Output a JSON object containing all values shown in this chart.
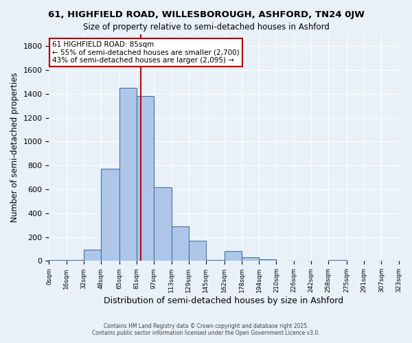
{
  "title_line1": "61, HIGHFIELD ROAD, WILLESBOROUGH, ASHFORD, TN24 0JW",
  "title_line2": "Size of property relative to semi-detached houses in Ashford",
  "xlabel": "Distribution of semi-detached houses by size in Ashford",
  "ylabel": "Number of semi-detached properties",
  "footer_line1": "Contains HM Land Registry data © Crown copyright and database right 2025.",
  "footer_line2": "Contains public sector information licensed under the Open Government Licence v3.0.",
  "annotation_title": "61 HIGHFIELD ROAD: 85sqm",
  "annotation_line1": "← 55% of semi-detached houses are smaller (2,700)",
  "annotation_line2": "43% of semi-detached houses are larger (2,095) →",
  "bar_edges": [
    0,
    16,
    32,
    48,
    65,
    81,
    97,
    113,
    129,
    145,
    162,
    178,
    194,
    210,
    226,
    242,
    258,
    275,
    291,
    307,
    323
  ],
  "bar_heights": [
    10,
    5,
    95,
    770,
    1450,
    1380,
    615,
    290,
    170,
    5,
    85,
    30,
    15,
    0,
    0,
    0,
    5,
    0,
    0,
    0,
    0
  ],
  "bar_color": "#aec6e8",
  "bar_edge_color": "#4472a8",
  "vline_x": 85,
  "vline_color": "#cc0000",
  "ylim": [
    0,
    1900
  ],
  "yticks": [
    0,
    200,
    400,
    600,
    800,
    1000,
    1200,
    1400,
    1600,
    1800
  ],
  "tick_labels": [
    "0sqm",
    "16sqm",
    "32sqm",
    "48sqm",
    "65sqm",
    "81sqm",
    "97sqm",
    "113sqm",
    "129sqm",
    "145sqm",
    "162sqm",
    "178sqm",
    "194sqm",
    "210sqm",
    "226sqm",
    "242sqm",
    "258sqm",
    "275sqm",
    "291sqm",
    "307sqm",
    "323sqm"
  ],
  "bg_color": "#e8f0f8",
  "grid_color": "#ffffff",
  "annotation_box_color": "#ffffff",
  "annotation_box_edge": "#cc0000"
}
